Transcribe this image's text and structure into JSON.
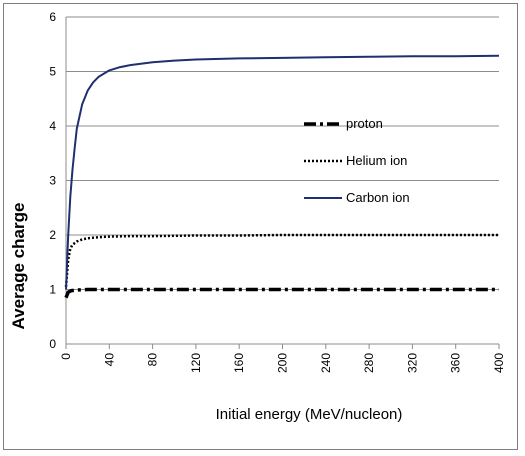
{
  "chart_data": {
    "type": "line",
    "title": "",
    "xlabel": "Initial energy (MeV/nucleon)",
    "ylabel": "Average charge",
    "xlim": [
      0,
      400
    ],
    "ylim": [
      0,
      6
    ],
    "x_ticks": [
      "0",
      "40",
      "80",
      "120",
      "160",
      "200",
      "240",
      "280",
      "320",
      "360",
      "400"
    ],
    "y_ticks": [
      "0",
      "1",
      "2",
      "3",
      "4",
      "5",
      "6"
    ],
    "grid": "horizontal",
    "legend_position": "right",
    "series": [
      {
        "name": "proton",
        "style": "dash-dot",
        "color": "#000000",
        "x": [
          0,
          1,
          2,
          5,
          10,
          20,
          40,
          80,
          160,
          240,
          320,
          400
        ],
        "y": [
          0.85,
          0.9,
          0.95,
          0.98,
          0.99,
          1.0,
          1.0,
          1.0,
          1.0,
          1.0,
          1.0,
          1.0
        ]
      },
      {
        "name": "Helium ion",
        "style": "dotted",
        "color": "#000000",
        "x": [
          0,
          1,
          2,
          4,
          6,
          10,
          15,
          20,
          30,
          40,
          60,
          80,
          120,
          160,
          200,
          280,
          400
        ],
        "y": [
          1.05,
          1.3,
          1.55,
          1.75,
          1.82,
          1.88,
          1.92,
          1.94,
          1.96,
          1.97,
          1.98,
          1.98,
          1.99,
          1.99,
          2.0,
          2.0,
          2.0
        ]
      },
      {
        "name": "Carbon ion",
        "style": "solid",
        "color": "#1f2f6f",
        "x": [
          0,
          1,
          2,
          4,
          6,
          8,
          10,
          15,
          20,
          25,
          30,
          40,
          50,
          60,
          80,
          100,
          120,
          160,
          200,
          240,
          280,
          320,
          360,
          400
        ],
        "y": [
          1.0,
          1.5,
          2.0,
          2.7,
          3.2,
          3.6,
          3.95,
          4.4,
          4.65,
          4.8,
          4.9,
          5.02,
          5.08,
          5.12,
          5.17,
          5.2,
          5.22,
          5.24,
          5.25,
          5.26,
          5.27,
          5.28,
          5.28,
          5.29
        ]
      }
    ]
  }
}
